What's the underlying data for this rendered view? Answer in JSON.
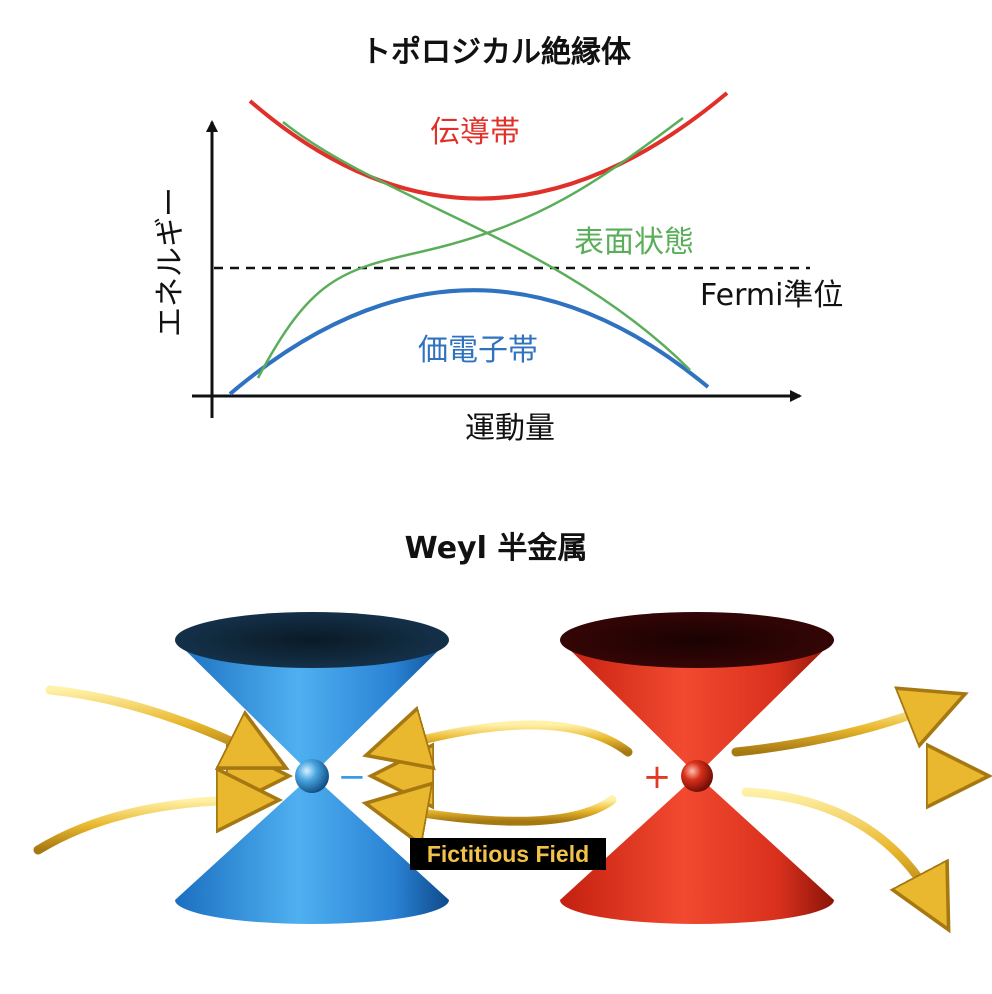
{
  "top_diagram": {
    "title": "トポロジカル絶縁体",
    "y_axis_label": "エネルギー",
    "x_axis_label": "運動量",
    "conduction_band": "伝導帯",
    "surface_states": "表面状態",
    "fermi_level": "Fermi準位",
    "valence_band": "価電子帯",
    "colors": {
      "conduction": "#e0302a",
      "surface": "#5aae5a",
      "valence": "#2f72c0"
    }
  },
  "bottom_diagram": {
    "title": "Weyl 半金属",
    "minus_sign": "−",
    "plus_sign": "+",
    "field_label": "Fictitious Field",
    "colors": {
      "left_cone": "#3d9be6",
      "right_cone": "#e23a22",
      "field_arrows": "#e9b82e"
    }
  }
}
